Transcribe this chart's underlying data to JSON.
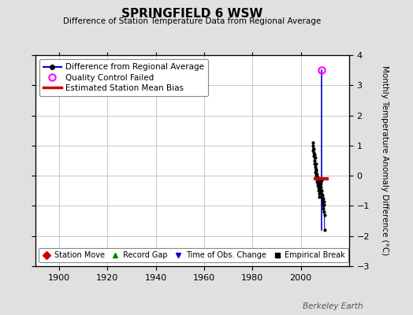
{
  "title": "SPRINGFIELD 6 WSW",
  "subtitle": "Difference of Station Temperature Data from Regional Average",
  "ylabel": "Monthly Temperature Anomaly Difference (°C)",
  "xlabel_years": [
    1900,
    1920,
    1940,
    1960,
    1980,
    2000
  ],
  "xlim": [
    1890,
    2020
  ],
  "ylim": [
    -3,
    4
  ],
  "yticks": [
    -3,
    -2,
    -1,
    0,
    1,
    2,
    3,
    4
  ],
  "background_color": "#e0e0e0",
  "plot_bg_color": "#ffffff",
  "grid_color": "#c0c0c0",
  "qc_failed_x": 2008.5,
  "qc_failed_y": 3.5,
  "bias_x_start": 2005.5,
  "bias_x_end": 2011.5,
  "bias_y": -0.1,
  "blue_line_color": "#0000cc",
  "red_bias_color": "#cc0000",
  "qc_color": "#ff00ff",
  "dot_color": "#000000",
  "watermark": "Berkeley Earth",
  "legend1_entries": [
    {
      "label": "Difference from Regional Average",
      "color": "#0000cc",
      "marker": "o",
      "linestyle": "-"
    },
    {
      "label": "Quality Control Failed",
      "color": "#ff00ff",
      "marker": "o",
      "linestyle": "none"
    },
    {
      "label": "Estimated Station Mean Bias",
      "color": "#cc0000",
      "marker": "none",
      "linestyle": "-"
    }
  ],
  "legend2_entries": [
    {
      "label": "Station Move",
      "color": "#cc0000",
      "marker": "D"
    },
    {
      "label": "Record Gap",
      "color": "#008800",
      "marker": "^"
    },
    {
      "label": "Time of Obs. Change",
      "color": "#0000cc",
      "marker": "v"
    },
    {
      "label": "Empirical Break",
      "color": "#000000",
      "marker": "s"
    }
  ],
  "main_data_x": [
    2005.0,
    2005.1,
    2005.2,
    2005.3,
    2005.4,
    2005.5,
    2005.6,
    2005.7,
    2005.8,
    2005.9,
    2006.0,
    2006.1,
    2006.2,
    2006.3,
    2006.4,
    2006.5,
    2006.6,
    2006.7,
    2006.8,
    2006.9,
    2007.0,
    2007.1,
    2007.2,
    2007.3,
    2007.4,
    2007.5,
    2007.6,
    2007.7,
    2007.8,
    2007.9,
    2008.0,
    2008.1,
    2008.2,
    2008.3,
    2008.4,
    2008.5,
    2008.6,
    2008.7,
    2008.8,
    2008.9,
    2009.0,
    2009.1,
    2009.2,
    2009.3,
    2009.4,
    2009.5,
    2009.6,
    2009.7,
    2009.8,
    2009.9
  ],
  "main_data_y": [
    1.1,
    0.85,
    1.0,
    0.75,
    0.9,
    0.65,
    0.5,
    0.7,
    0.4,
    0.6,
    0.3,
    0.1,
    0.2,
    0.4,
    0.0,
    0.15,
    -0.1,
    0.05,
    -0.2,
    -0.05,
    -0.3,
    -0.15,
    -0.4,
    -0.2,
    -0.5,
    -0.3,
    -0.6,
    -0.45,
    -0.7,
    -0.55,
    -0.2,
    -0.35,
    -0.1,
    -0.25,
    -0.4,
    -0.15,
    -0.5,
    -0.6,
    -0.7,
    -0.8,
    -0.9,
    -0.65,
    -1.0,
    -0.75,
    -1.1,
    -0.85,
    -1.2,
    -0.95,
    -1.3,
    -1.8
  ],
  "vert_line_x": 2008.5,
  "vert_line_y_top": 3.5,
  "vert_line_y_bot": -1.8
}
